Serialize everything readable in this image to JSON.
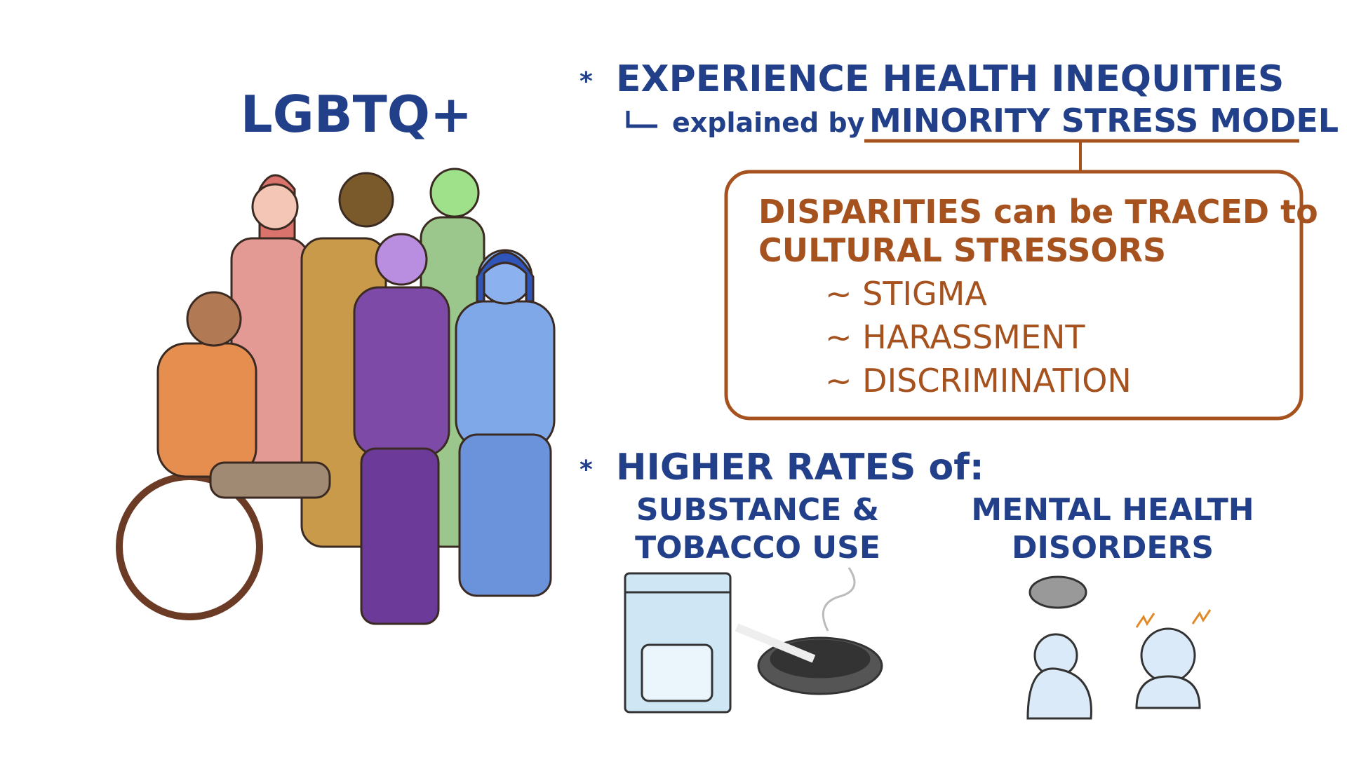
{
  "title": "LGBTQ+",
  "point1": {
    "heading": "EXPERIENCE HEALTH INEQUITIES",
    "explained": "explained by",
    "model": "MINORITY STRESS MODEL"
  },
  "box": {
    "line1": "DISPARITIES can be TRACED to",
    "line2": "CULTURAL STRESSORS",
    "items": [
      "~ STIGMA",
      "~ HARASSMENT",
      "~ DISCRIMINATION"
    ]
  },
  "point2": {
    "heading": "HIGHER RATES of:",
    "left": [
      "SUBSTANCE &",
      "TOBACCO USE"
    ],
    "right": [
      "MENTAL HEALTH",
      "DISORDERS"
    ]
  }
}
